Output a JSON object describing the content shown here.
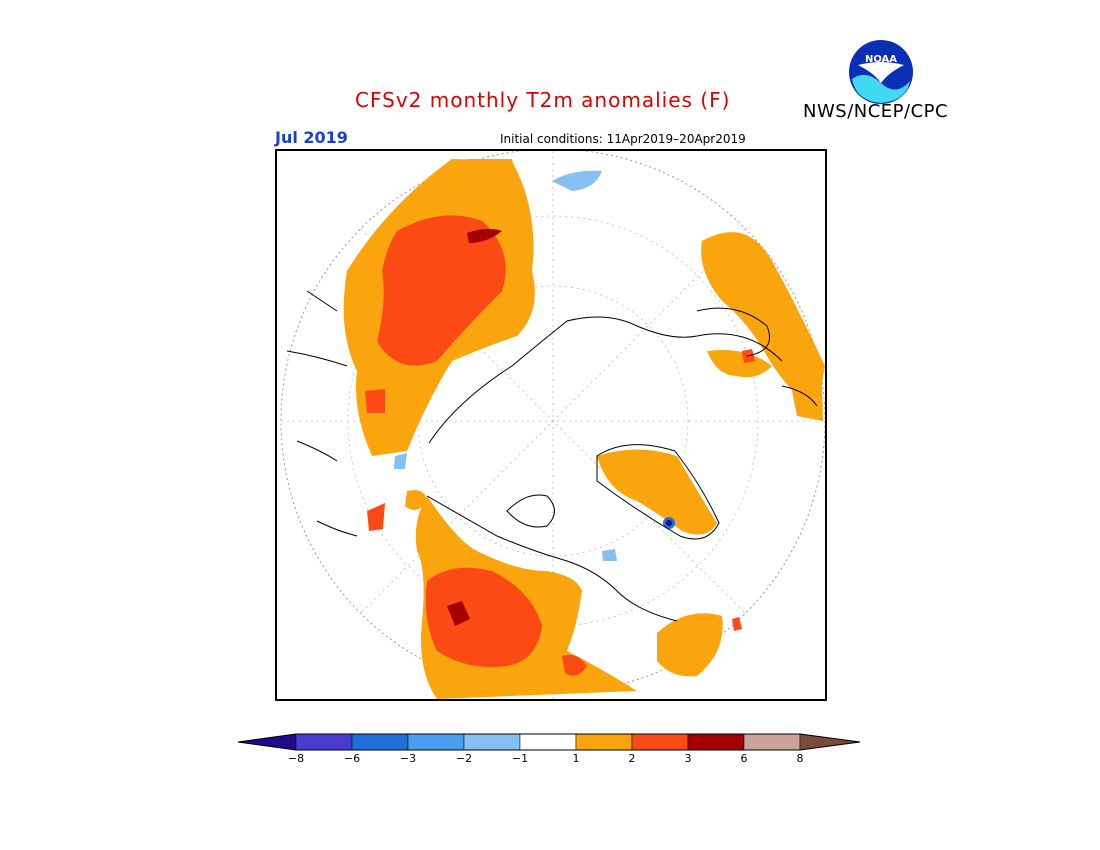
{
  "title": "CFSv2 monthly T2m anomalies (F)",
  "agency": "NWS/NCEP/CPC",
  "logo_text": "NOAA",
  "month": "Jul 2019",
  "initial_conditions": "Initial conditions: 11Apr2019–20Apr2019",
  "colors": {
    "title": "#e00000",
    "month": "#1a3fd0",
    "land_outline": "#000000",
    "graticule": "#999999"
  },
  "legend": {
    "ticks": [
      "−8",
      "−6",
      "−3",
      "−2",
      "−1",
      "1",
      "2",
      "3",
      "6",
      "8"
    ],
    "bins": [
      {
        "label": "< −8",
        "color": "#1f0a8f"
      },
      {
        "label": "−8 to −6",
        "color": "#4a3bd0"
      },
      {
        "label": "−6 to −3",
        "color": "#1f6fd8"
      },
      {
        "label": "−3 to −2",
        "color": "#4a9eee"
      },
      {
        "label": "−2 to −1",
        "color": "#86bff2"
      },
      {
        "label": "−1 to 1",
        "color": "#ffffff"
      },
      {
        "label": "1 to 2",
        "color": "#fba50e"
      },
      {
        "label": "2 to 3",
        "color": "#fb4a14"
      },
      {
        "label": "3 to 6",
        "color": "#a40000"
      },
      {
        "label": "6 to 8",
        "color": "#c8a49a"
      },
      {
        "label": "> 8",
        "color": "#7a4a3a"
      }
    ]
  }
}
